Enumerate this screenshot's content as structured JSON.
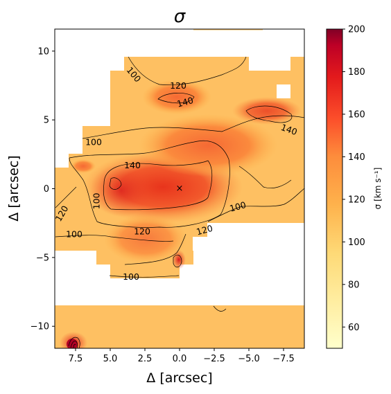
{
  "chart_data": {
    "type": "heatmap",
    "title": "σ",
    "xlabel": "Δ [arcsec]",
    "ylabel": "Δ [arcsec]",
    "xlim": [
      9,
      -9
    ],
    "ylim": [
      -11.6,
      11.6
    ],
    "x_ticks": [
      "7.5",
      "5.0",
      "2.5",
      "0.0",
      "−2.5",
      "−5.0",
      "−7.5"
    ],
    "x_tick_values": [
      7.5,
      5.0,
      2.5,
      0.0,
      -2.5,
      -5.0,
      -7.5
    ],
    "y_ticks": [
      "10",
      "5",
      "0",
      "−5",
      "−10"
    ],
    "y_tick_values": [
      10,
      5,
      0,
      -5,
      -10
    ],
    "colorbar": {
      "label": "σ [km s⁻¹]",
      "colormap": "YlOrRd",
      "range": [
        50,
        200
      ],
      "ticks": [
        "60",
        "80",
        "100",
        "120",
        "140",
        "160",
        "180",
        "200"
      ],
      "tick_values": [
        60,
        80,
        100,
        120,
        140,
        160,
        180,
        200
      ]
    },
    "contour_levels": [
      100,
      120,
      140
    ],
    "contour_labels": [
      {
        "text": "100",
        "x": 3.3,
        "y": 8.3
      },
      {
        "text": "120",
        "x": 0.1,
        "y": 7.5
      },
      {
        "text": "140",
        "x": -0.4,
        "y": 6.3
      },
      {
        "text": "140",
        "x": -7.9,
        "y": 4.3
      },
      {
        "text": "100",
        "x": 6.2,
        "y": 3.4
      },
      {
        "text": "140",
        "x": 3.4,
        "y": 1.7
      },
      {
        "text": "100",
        "x": 6.0,
        "y": -0.9
      },
      {
        "text": "120",
        "x": 8.5,
        "y": -1.8
      },
      {
        "text": "100",
        "x": 7.6,
        "y": -3.3
      },
      {
        "text": "120",
        "x": 2.7,
        "y": -3.1
      },
      {
        "text": "120",
        "x": -1.8,
        "y": -3.0
      },
      {
        "text": "100",
        "x": -4.2,
        "y": -1.3
      },
      {
        "text": "100",
        "x": 3.5,
        "y": -6.4
      }
    ],
    "center_marker": {
      "symbol": "×",
      "x": 0.0,
      "y": 0.0
    },
    "peak_value": 200,
    "notes": []
  }
}
